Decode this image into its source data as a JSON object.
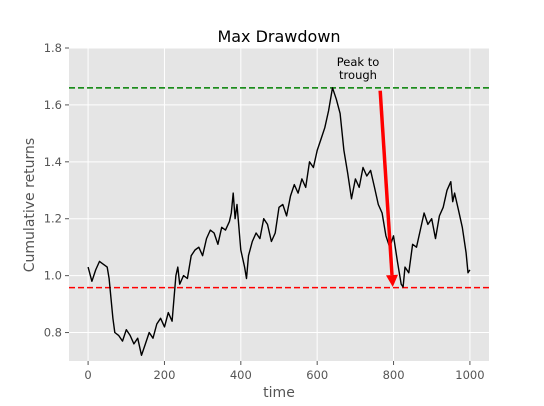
{
  "chart_data": {
    "type": "line",
    "title": "Max Drawdown",
    "xlabel": "time",
    "ylabel": "Cumulative returns",
    "xlim": [
      -50,
      1050
    ],
    "ylim": [
      0.7,
      1.8
    ],
    "xticks": [
      0,
      200,
      400,
      600,
      800,
      1000
    ],
    "yticks": [
      0.8,
      1.0,
      1.2,
      1.4,
      1.6,
      1.8
    ],
    "xtick_labels": [
      "0",
      "200",
      "400",
      "600",
      "800",
      "1000"
    ],
    "ytick_labels": [
      "0.8",
      "1.0",
      "1.2",
      "1.4",
      "1.6",
      "1.8"
    ],
    "grid": true,
    "series": [
      {
        "color": "#000000",
        "points": [
          [
            0,
            1.03
          ],
          [
            10,
            0.98
          ],
          [
            20,
            1.02
          ],
          [
            30,
            1.05
          ],
          [
            40,
            1.04
          ],
          [
            50,
            1.03
          ],
          [
            55,
            0.99
          ],
          [
            60,
            0.92
          ],
          [
            65,
            0.85
          ],
          [
            70,
            0.8
          ],
          [
            80,
            0.79
          ],
          [
            90,
            0.77
          ],
          [
            100,
            0.81
          ],
          [
            110,
            0.79
          ],
          [
            120,
            0.76
          ],
          [
            130,
            0.78
          ],
          [
            140,
            0.72
          ],
          [
            150,
            0.76
          ],
          [
            160,
            0.8
          ],
          [
            170,
            0.78
          ],
          [
            180,
            0.83
          ],
          [
            190,
            0.85
          ],
          [
            200,
            0.82
          ],
          [
            210,
            0.87
          ],
          [
            220,
            0.84
          ],
          [
            230,
            1.0
          ],
          [
            235,
            1.03
          ],
          [
            240,
            0.97
          ],
          [
            250,
            1.0
          ],
          [
            260,
            0.99
          ],
          [
            270,
            1.07
          ],
          [
            280,
            1.09
          ],
          [
            290,
            1.1
          ],
          [
            300,
            1.07
          ],
          [
            310,
            1.13
          ],
          [
            320,
            1.16
          ],
          [
            330,
            1.15
          ],
          [
            340,
            1.11
          ],
          [
            350,
            1.17
          ],
          [
            360,
            1.16
          ],
          [
            370,
            1.19
          ],
          [
            375,
            1.22
          ],
          [
            380,
            1.29
          ],
          [
            385,
            1.2
          ],
          [
            390,
            1.25
          ],
          [
            400,
            1.09
          ],
          [
            410,
            1.03
          ],
          [
            415,
            0.99
          ],
          [
            420,
            1.07
          ],
          [
            430,
            1.12
          ],
          [
            440,
            1.15
          ],
          [
            450,
            1.13
          ],
          [
            460,
            1.2
          ],
          [
            470,
            1.18
          ],
          [
            480,
            1.12
          ],
          [
            490,
            1.15
          ],
          [
            500,
            1.24
          ],
          [
            510,
            1.25
          ],
          [
            520,
            1.21
          ],
          [
            530,
            1.28
          ],
          [
            540,
            1.32
          ],
          [
            550,
            1.29
          ],
          [
            560,
            1.34
          ],
          [
            570,
            1.31
          ],
          [
            580,
            1.4
          ],
          [
            590,
            1.38
          ],
          [
            600,
            1.44
          ],
          [
            610,
            1.48
          ],
          [
            620,
            1.52
          ],
          [
            630,
            1.58
          ],
          [
            640,
            1.66
          ],
          [
            650,
            1.62
          ],
          [
            660,
            1.57
          ],
          [
            670,
            1.44
          ],
          [
            680,
            1.36
          ],
          [
            690,
            1.27
          ],
          [
            700,
            1.34
          ],
          [
            710,
            1.31
          ],
          [
            720,
            1.38
          ],
          [
            730,
            1.35
          ],
          [
            740,
            1.37
          ],
          [
            750,
            1.31
          ],
          [
            760,
            1.25
          ],
          [
            770,
            1.22
          ],
          [
            780,
            1.14
          ],
          [
            790,
            1.1
          ],
          [
            800,
            1.14
          ],
          [
            810,
            1.05
          ],
          [
            820,
            0.97
          ],
          [
            825,
            0.96
          ],
          [
            830,
            1.03
          ],
          [
            840,
            1.01
          ],
          [
            850,
            1.11
          ],
          [
            860,
            1.1
          ],
          [
            870,
            1.16
          ],
          [
            880,
            1.22
          ],
          [
            890,
            1.18
          ],
          [
            900,
            1.2
          ],
          [
            910,
            1.13
          ],
          [
            920,
            1.21
          ],
          [
            930,
            1.24
          ],
          [
            940,
            1.3
          ],
          [
            950,
            1.33
          ],
          [
            955,
            1.26
          ],
          [
            960,
            1.29
          ],
          [
            970,
            1.23
          ],
          [
            980,
            1.17
          ],
          [
            990,
            1.08
          ],
          [
            995,
            1.01
          ],
          [
            1000,
            1.02
          ]
        ]
      }
    ],
    "hlines": [
      {
        "y": 1.66,
        "color": "#008000",
        "style": "dashed"
      },
      {
        "y": 0.958,
        "color": "#ff0000",
        "style": "dashed"
      }
    ],
    "arrow": {
      "from": [
        765,
        1.65
      ],
      "to": [
        798,
        0.96
      ],
      "color": "#ff0000"
    },
    "annotation": {
      "text_lines": [
        "Peak to",
        "trough"
      ],
      "x": 705,
      "y": 1.69
    }
  }
}
